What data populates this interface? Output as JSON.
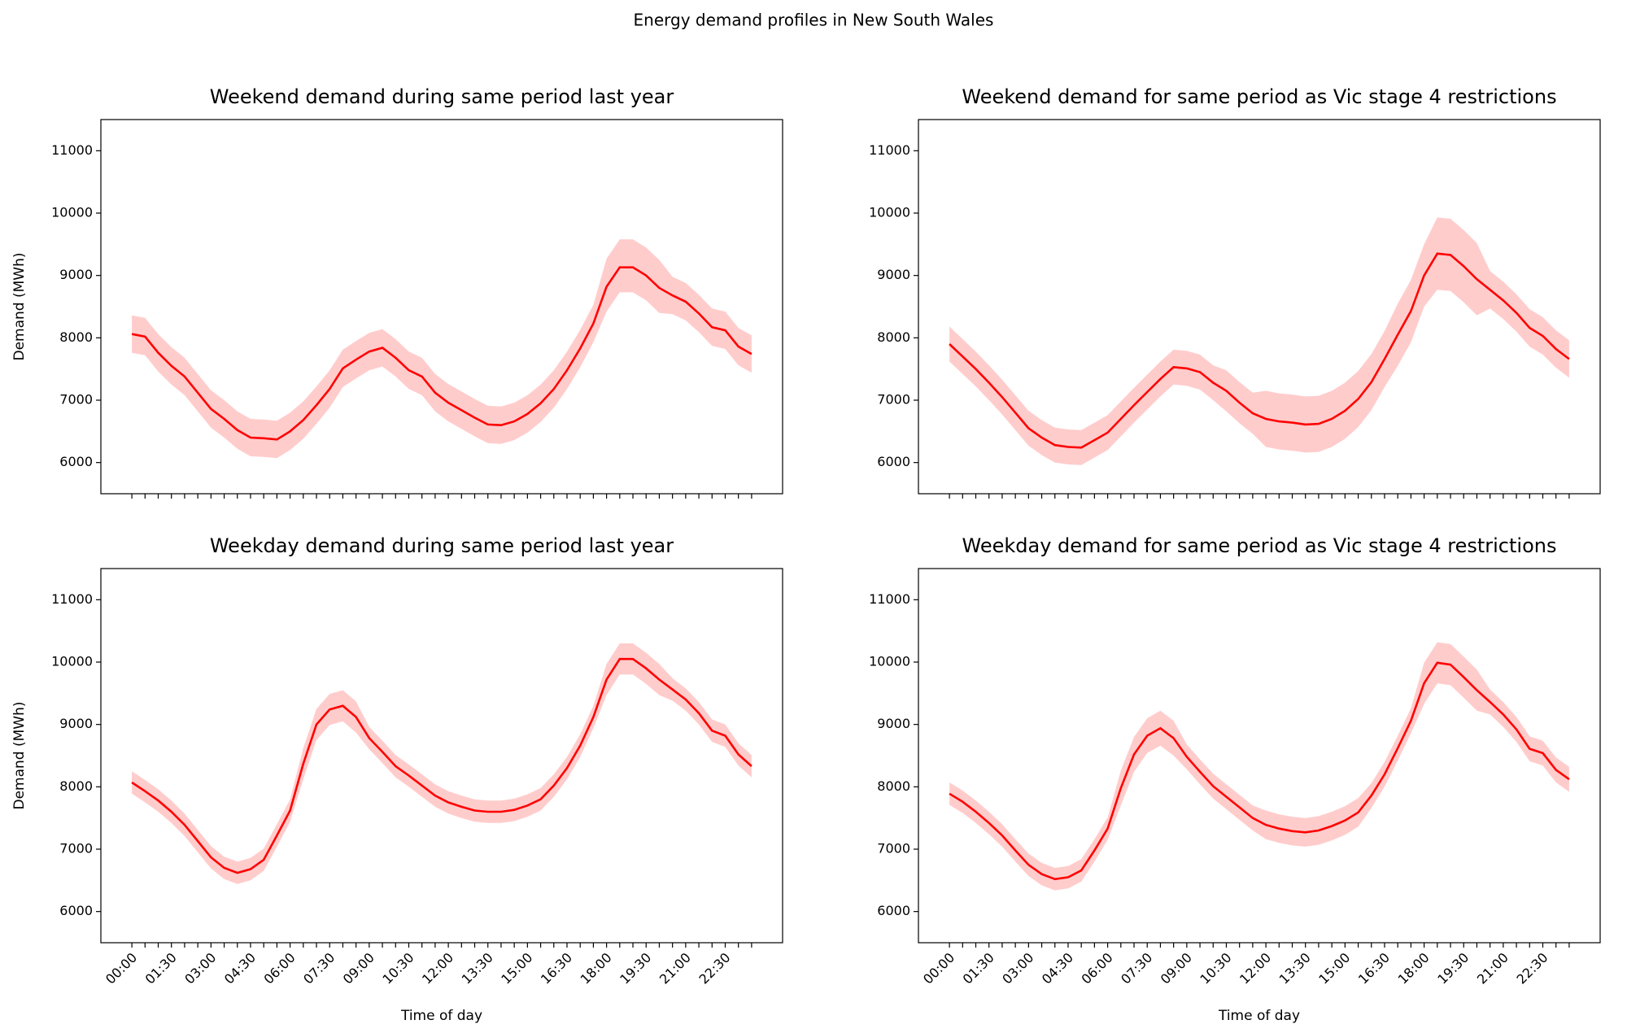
{
  "title": "Energy demand profiles in New South Wales",
  "chart_data": [
    {
      "type": "line",
      "title": "Weekend demand during same period last year",
      "ylabel": "Demand (MWh)",
      "categories": [
        null,
        null,
        null,
        null,
        null,
        null,
        null,
        null,
        null,
        null,
        null,
        null,
        null,
        null,
        null,
        null,
        null,
        null,
        null,
        null,
        null,
        null,
        null,
        null,
        null,
        null,
        null,
        null,
        null,
        null,
        null,
        null,
        null,
        null,
        null,
        null,
        null,
        null,
        null,
        null,
        null,
        null,
        null,
        null,
        null,
        null,
        null,
        null
      ],
      "ylim": [
        5500,
        11500
      ],
      "yticks": [
        6000,
        7000,
        8000,
        9000,
        10000,
        11000
      ],
      "series": [
        {
          "color": "#ff0000",
          "band_alpha": 0.2,
          "values": [
            8060,
            8020,
            7760,
            7550,
            7380,
            7120,
            6860,
            6700,
            6520,
            6400,
            6390,
            6370,
            6500,
            6680,
            6920,
            7180,
            7510,
            7650,
            7780,
            7840,
            7680,
            7480,
            7380,
            7120,
            6960,
            6840,
            6720,
            6610,
            6600,
            6660,
            6780,
            6950,
            7180,
            7480,
            7830,
            8230,
            8820,
            9130,
            9130,
            9000,
            8800,
            8680,
            8580,
            8390,
            8170,
            8120,
            7860,
            7740
          ],
          "upper": [
            8360,
            8320,
            8060,
            7850,
            7680,
            7420,
            7160,
            7000,
            6820,
            6700,
            6690,
            6670,
            6800,
            6980,
            7220,
            7480,
            7810,
            7950,
            8080,
            8140,
            7980,
            7780,
            7680,
            7420,
            7260,
            7140,
            7020,
            6910,
            6900,
            6960,
            7080,
            7250,
            7480,
            7780,
            8130,
            8530,
            9270,
            9580,
            9580,
            9450,
            9250,
            8980,
            8880,
            8690,
            8470,
            8420,
            8160,
            8040
          ],
          "lower": [
            7760,
            7720,
            7460,
            7250,
            7080,
            6820,
            6560,
            6400,
            6220,
            6100,
            6090,
            6070,
            6200,
            6380,
            6620,
            6880,
            7210,
            7350,
            7480,
            7540,
            7380,
            7180,
            7080,
            6820,
            6660,
            6540,
            6420,
            6310,
            6300,
            6360,
            6480,
            6650,
            6880,
            7180,
            7530,
            7930,
            8420,
            8730,
            8730,
            8600,
            8400,
            8380,
            8280,
            8090,
            7870,
            7820,
            7560,
            7440
          ]
        }
      ]
    },
    {
      "type": "line",
      "title": "Weekend demand for same period as Vic stage 4 restrictions",
      "categories": [
        null,
        null,
        null,
        null,
        null,
        null,
        null,
        null,
        null,
        null,
        null,
        null,
        null,
        null,
        null,
        null,
        null,
        null,
        null,
        null,
        null,
        null,
        null,
        null,
        null,
        null,
        null,
        null,
        null,
        null,
        null,
        null,
        null,
        null,
        null,
        null,
        null,
        null,
        null,
        null,
        null,
        null,
        null,
        null,
        null,
        null,
        null,
        null
      ],
      "ylim": [
        5500,
        11500
      ],
      "yticks": [
        6000,
        7000,
        8000,
        9000,
        10000,
        11000
      ],
      "series": [
        {
          "color": "#ff0000",
          "band_alpha": 0.2,
          "values": [
            7900,
            7700,
            7500,
            7280,
            7050,
            6800,
            6550,
            6400,
            6280,
            6250,
            6240,
            6360,
            6480,
            6700,
            6920,
            7130,
            7340,
            7530,
            7510,
            7450,
            7280,
            7150,
            6960,
            6790,
            6700,
            6660,
            6640,
            6610,
            6620,
            6700,
            6830,
            7020,
            7290,
            7660,
            8050,
            8430,
            9000,
            9350,
            9330,
            9150,
            8940,
            8770,
            8600,
            8400,
            8160,
            8030,
            7820,
            7660
          ],
          "upper": [
            8180,
            7980,
            7780,
            7560,
            7330,
            7080,
            6830,
            6680,
            6560,
            6530,
            6520,
            6640,
            6760,
            6980,
            7200,
            7410,
            7620,
            7810,
            7790,
            7730,
            7560,
            7480,
            7290,
            7120,
            7150,
            7110,
            7090,
            7060,
            7070,
            7150,
            7280,
            7470,
            7740,
            8110,
            8550,
            8930,
            9500,
            9930,
            9910,
            9730,
            9520,
            9070,
            8900,
            8700,
            8460,
            8330,
            8120,
            7960
          ],
          "lower": [
            7620,
            7420,
            7220,
            7000,
            6770,
            6520,
            6270,
            6120,
            6000,
            5970,
            5960,
            6080,
            6200,
            6420,
            6640,
            6850,
            7060,
            7250,
            7230,
            7170,
            7000,
            6820,
            6630,
            6460,
            6250,
            6210,
            6190,
            6160,
            6170,
            6250,
            6380,
            6570,
            6840,
            7210,
            7550,
            7930,
            8500,
            8770,
            8750,
            8570,
            8360,
            8470,
            8300,
            8100,
            7860,
            7730,
            7520,
            7360
          ]
        }
      ]
    },
    {
      "type": "line",
      "title": "Weekday demand during same period last year",
      "ylabel": "Demand (MWh)",
      "xlabel": "Time of day",
      "categories": [
        "00:00",
        null,
        null,
        "01:30",
        null,
        null,
        "03:00",
        null,
        null,
        "04:30",
        null,
        null,
        "06:00",
        null,
        null,
        "07:30",
        null,
        null,
        "09:00",
        null,
        null,
        "10:30",
        null,
        null,
        "12:00",
        null,
        null,
        "13:30",
        null,
        null,
        "15:00",
        null,
        null,
        "16:30",
        null,
        null,
        "18:00",
        null,
        null,
        "19:30",
        null,
        null,
        "21:00",
        null,
        null,
        "22:30",
        null,
        null
      ],
      "ylim": [
        5500,
        11500
      ],
      "yticks": [
        6000,
        7000,
        8000,
        9000,
        10000,
        11000
      ],
      "series": [
        {
          "color": "#ff0000",
          "band_alpha": 0.2,
          "values": [
            8070,
            7930,
            7780,
            7600,
            7390,
            7130,
            6870,
            6700,
            6620,
            6680,
            6830,
            7220,
            7620,
            8370,
            9000,
            9240,
            9300,
            9120,
            8780,
            8560,
            8330,
            8180,
            8020,
            7860,
            7750,
            7680,
            7620,
            7600,
            7600,
            7630,
            7700,
            7800,
            8020,
            8300,
            8660,
            9120,
            9720,
            10050,
            10050,
            9900,
            9720,
            9560,
            9400,
            9180,
            8900,
            8820,
            8520,
            8330
          ],
          "upper": [
            8250,
            8110,
            7960,
            7780,
            7570,
            7310,
            7050,
            6880,
            6800,
            6860,
            7010,
            7400,
            7800,
            8620,
            9250,
            9490,
            9550,
            9370,
            8960,
            8740,
            8510,
            8360,
            8200,
            8040,
            7930,
            7860,
            7800,
            7780,
            7780,
            7810,
            7880,
            7980,
            8200,
            8480,
            8840,
            9300,
            9970,
            10300,
            10300,
            10150,
            9970,
            9740,
            9580,
            9360,
            9080,
            9000,
            8700,
            8510
          ],
          "lower": [
            7890,
            7750,
            7600,
            7420,
            7210,
            6950,
            6690,
            6520,
            6440,
            6500,
            6650,
            7040,
            7440,
            8120,
            8750,
            8990,
            9050,
            8870,
            8600,
            8380,
            8150,
            8000,
            7840,
            7680,
            7570,
            7500,
            7440,
            7420,
            7420,
            7450,
            7520,
            7620,
            7840,
            8120,
            8480,
            8940,
            9470,
            9800,
            9800,
            9650,
            9470,
            9380,
            9220,
            9000,
            8720,
            8640,
            8340,
            8150
          ]
        }
      ]
    },
    {
      "type": "line",
      "title": "Weekday demand for same period as Vic stage 4 restrictions",
      "xlabel": "Time of day",
      "categories": [
        "00:00",
        null,
        null,
        "01:30",
        null,
        null,
        "03:00",
        null,
        null,
        "04:30",
        null,
        null,
        "06:00",
        null,
        null,
        "07:30",
        null,
        null,
        "09:00",
        null,
        null,
        "10:30",
        null,
        null,
        "12:00",
        null,
        null,
        "13:30",
        null,
        null,
        "15:00",
        null,
        null,
        "16:30",
        null,
        null,
        "18:00",
        null,
        null,
        "19:30",
        null,
        null,
        "21:00",
        null,
        null,
        "22:30",
        null,
        null
      ],
      "ylim": [
        5500,
        11500
      ],
      "yticks": [
        6000,
        7000,
        8000,
        9000,
        10000,
        11000
      ],
      "series": [
        {
          "color": "#ff0000",
          "band_alpha": 0.2,
          "values": [
            7890,
            7760,
            7600,
            7420,
            7220,
            6980,
            6750,
            6600,
            6520,
            6550,
            6660,
            6980,
            7330,
            7980,
            8520,
            8820,
            8940,
            8780,
            8480,
            8240,
            8010,
            7840,
            7670,
            7500,
            7390,
            7330,
            7290,
            7270,
            7300,
            7370,
            7460,
            7590,
            7860,
            8200,
            8620,
            9060,
            9660,
            9990,
            9960,
            9760,
            9550,
            9360,
            9160,
            8920,
            8610,
            8540,
            8270,
            8120
          ],
          "upper": [
            8070,
            7940,
            7780,
            7600,
            7400,
            7160,
            6930,
            6780,
            6700,
            6730,
            6840,
            7160,
            7510,
            8260,
            8800,
            9100,
            9220,
            9060,
            8680,
            8440,
            8210,
            8040,
            7870,
            7700,
            7620,
            7560,
            7520,
            7500,
            7530,
            7600,
            7690,
            7820,
            8060,
            8400,
            8820,
            9260,
            9990,
            10320,
            10290,
            10090,
            9880,
            9560,
            9360,
            9120,
            8810,
            8740,
            8470,
            8320
          ],
          "lower": [
            7710,
            7580,
            7420,
            7240,
            7040,
            6800,
            6570,
            6420,
            6340,
            6370,
            6480,
            6800,
            7150,
            7700,
            8240,
            8540,
            8660,
            8500,
            8280,
            8040,
            7810,
            7640,
            7470,
            7300,
            7160,
            7100,
            7060,
            7040,
            7070,
            7140,
            7230,
            7360,
            7660,
            8000,
            8420,
            8860,
            9330,
            9660,
            9630,
            9430,
            9220,
            9160,
            8960,
            8720,
            8410,
            8340,
            8070,
            7920
          ]
        }
      ]
    }
  ]
}
